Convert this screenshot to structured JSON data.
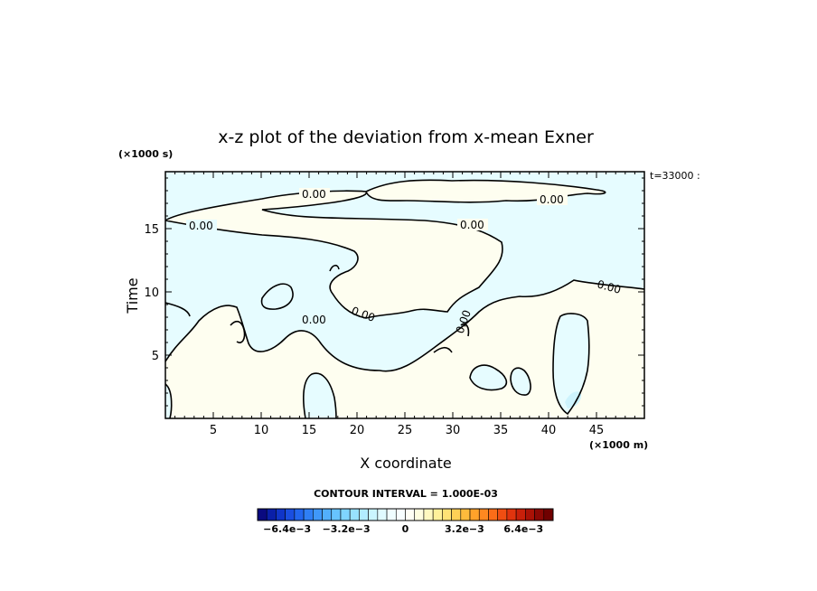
{
  "chart_data": {
    "type": "heatmap",
    "title": "x-z plot of the deviation from x-mean Exner",
    "time_label": "t=33000 :",
    "xlabel": "X coordinate",
    "ylabel": "Time",
    "x_units": "(×1000 m)",
    "y_units": "(×1000 s)",
    "xlim": [
      0,
      50
    ],
    "ylim": [
      0,
      19.5
    ],
    "x_ticks": [
      5,
      10,
      15,
      20,
      25,
      30,
      35,
      40,
      45
    ],
    "y_ticks": [
      5,
      10,
      15
    ],
    "contour_interval_text": "CONTOUR INTERVAL = 1.000E-03",
    "contour_labels": [
      "0.00",
      "0.00",
      "0.00",
      "0.00",
      "0.00",
      "0.00",
      "0.00",
      "0.00"
    ],
    "colorbar": {
      "labels": [
        "−6.4e−3",
        "−3.2e−3",
        "0",
        "3.2e−3",
        "6.4e−3"
      ],
      "range": [
        -0.008,
        0.008
      ],
      "colors": [
        "#0a0a80",
        "#0a1fa8",
        "#1035c8",
        "#1a4ee0",
        "#2266ee",
        "#2f7ff5",
        "#3f98fa",
        "#52affc",
        "#67c3fe",
        "#7fd5ff",
        "#98e2ff",
        "#b2edff",
        "#caf5ff",
        "#e0faff",
        "#f0fdff",
        "#f8feff",
        "#fffef5",
        "#fffde0",
        "#fff8c0",
        "#fff09a",
        "#ffe276",
        "#ffd056",
        "#ffbb3c",
        "#ffa22a",
        "#ff8820",
        "#fb6c18",
        "#f04e12",
        "#e0340e",
        "#c8200a",
        "#aa1206",
        "#8c0804",
        "#700000"
      ]
    },
    "fill_colors": {
      "negative": "#e6fcff",
      "positive": "#fefef0",
      "min_patch": "#cdf3fd"
    }
  }
}
